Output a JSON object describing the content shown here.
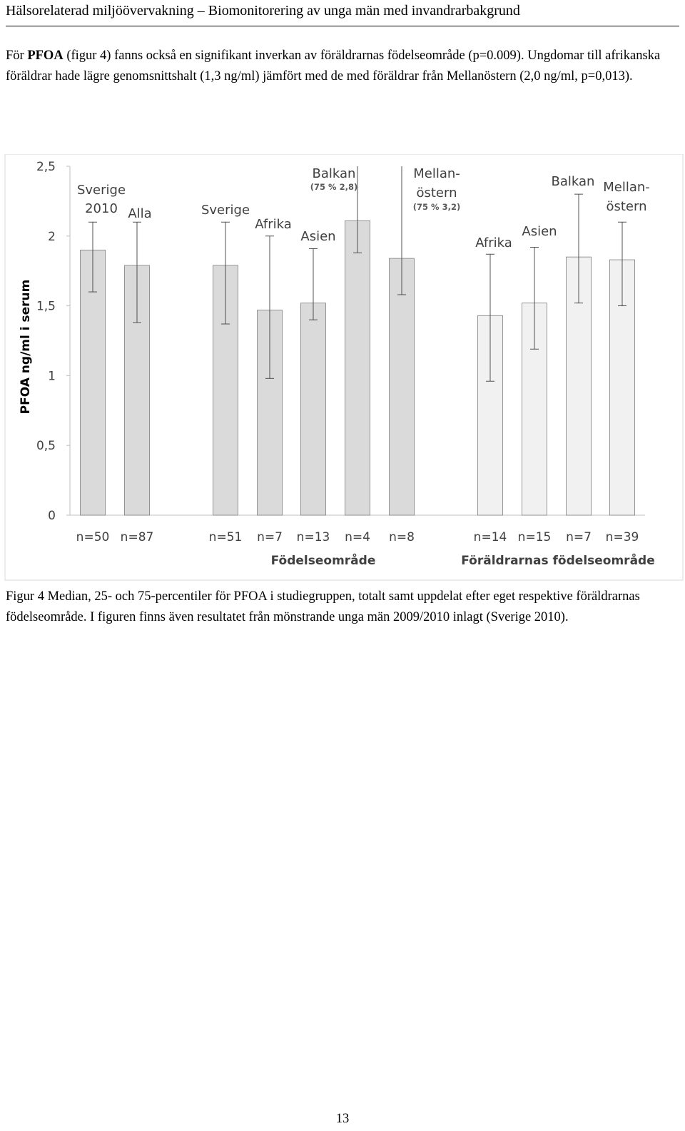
{
  "header": {
    "title": "Hälsorelaterad miljöövervakning – Biomonitorering av unga män med invandrarbakgrund"
  },
  "paragraph": {
    "prefix": "För ",
    "bold": "PFOA",
    "text": " (figur 4) fanns också en signifikant inverkan av föräldrarnas födelseområde (p=0.009). Ungdomar till afrikanska föräldrar hade lägre genomsnittshalt (1,3 ng/ml) jämfört med de med föräldrar från Mellanöstern (2,0 ng/ml, p=0,013)."
  },
  "chart_data": {
    "type": "bar",
    "title": "",
    "ylabel": "PFOA ng/ml i serum",
    "ylim": [
      0,
      2.5
    ],
    "yticks": [
      "0",
      "0,5",
      "1",
      "1,5",
      "2",
      "2,5"
    ],
    "ytick_values": [
      0,
      0.5,
      1,
      1.5,
      2,
      2.5
    ],
    "group_labels": [
      "Födelseområde",
      "Föräldrarnas födelseområde"
    ],
    "colors": {
      "dark": "#dadada",
      "light": "#f1f1f1",
      "edge": "#7f7f7f"
    },
    "bars": [
      {
        "label": [
          "Sverige",
          "2010"
        ],
        "note": "",
        "n": "n=50",
        "median": 1.9,
        "q25": 1.6,
        "q75": 2.1,
        "shade": "dark"
      },
      {
        "label": [
          "Alla"
        ],
        "note": "",
        "n": "n=87",
        "median": 1.79,
        "q25": 1.38,
        "q75": 2.1,
        "shade": "dark"
      },
      {
        "label": [
          "Sverige"
        ],
        "note": "",
        "n": "n=51",
        "median": 1.79,
        "q25": 1.37,
        "q75": 2.1,
        "shade": "dark"
      },
      {
        "label": [
          "Afrika"
        ],
        "note": "",
        "n": "n=7",
        "median": 1.47,
        "q25": 0.98,
        "q75": 2.0,
        "shade": "dark"
      },
      {
        "label": [
          "Asien"
        ],
        "note": "",
        "n": "n=13",
        "median": 1.52,
        "q25": 1.4,
        "q75": 1.91,
        "shade": "dark"
      },
      {
        "label": [
          "Balkan"
        ],
        "note": "(75 % 2,8)",
        "n": "n=4",
        "median": 2.11,
        "q25": 1.88,
        "q75": 2.8,
        "shade": "dark"
      },
      {
        "label": [
          "Mellan-",
          "östern"
        ],
        "note": "(75 % 3,2)",
        "n": "n=8",
        "median": 1.84,
        "q25": 1.58,
        "q75": 3.2,
        "shade": "dark"
      },
      {
        "label": [
          "Afrika"
        ],
        "note": "",
        "n": "n=14",
        "median": 1.43,
        "q25": 0.96,
        "q75": 1.87,
        "shade": "light"
      },
      {
        "label": [
          "Asien"
        ],
        "note": "",
        "n": "n=15",
        "median": 1.52,
        "q25": 1.19,
        "q75": 1.92,
        "shade": "light"
      },
      {
        "label": [
          "Balkan"
        ],
        "note": "",
        "n": "n=7",
        "median": 1.85,
        "q25": 1.52,
        "q75": 2.3,
        "shade": "light"
      },
      {
        "label": [
          "Mellan-",
          "östern"
        ],
        "note": "",
        "n": "n=39",
        "median": 1.83,
        "q25": 1.5,
        "q75": 2.1,
        "shade": "light"
      }
    ]
  },
  "caption": {
    "text": "Figur 4 Median, 25- och 75-percentiler för PFOA i studiegruppen, totalt samt uppdelat efter eget respektive föräldrarnas födelseområde. I figuren finns även resultatet från mönstrande unga män 2009/2010 inlagt (Sverige 2010)."
  },
  "footer": {
    "page_number": "13"
  }
}
